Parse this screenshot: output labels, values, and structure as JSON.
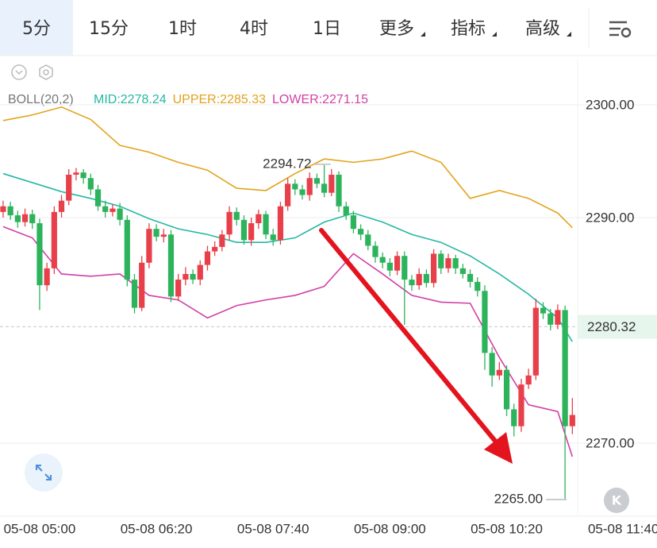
{
  "tabs": [
    "5分",
    "15分",
    "1时",
    "4时",
    "1日",
    "更多",
    "指标",
    "高级"
  ],
  "chart_data": {
    "type": "candlestick",
    "indicator": {
      "name": "BOLL(20,2)",
      "labels": [
        {
          "text": "MID:2278.24",
          "color": "#25b8a4"
        },
        {
          "text": "UPPER:2285.33",
          "color": "#e2a31c"
        },
        {
          "text": "LOWER:2271.15",
          "color": "#d13fa6"
        }
      ]
    },
    "up_color": "#e8404a",
    "down_color": "#2db35c",
    "open": [
      2290.5,
      2291.0,
      2290.2,
      2289.6,
      2290.3,
      2289.5,
      2284.0,
      2285.5,
      2290.5,
      2291.5,
      2293.8,
      2294.0,
      2293.5,
      2292.5,
      2291.0,
      2290.5,
      2290.8,
      2289.8,
      2284.5,
      2282.0,
      2286.0,
      2289.0,
      2288.3,
      2288.5,
      2283.0,
      2284.5,
      2285.0,
      2284.5,
      2285.8,
      2287.0,
      2287.4,
      2288.5,
      2290.5,
      2289.8,
      2288.0,
      2289.5,
      2290.3,
      2288.5,
      2288.0,
      2291.0,
      2293.0,
      2292.5,
      2292.0,
      2293.5,
      2293.0,
      2292.2,
      2293.8,
      2291.0,
      2290.2,
      2289.0,
      2288.5,
      2287.5,
      2286.5,
      2286.0,
      2285.3,
      2286.6,
      2284.5,
      2284.0,
      2285.0,
      2284.2,
      2286.8,
      2285.5,
      2286.4,
      2285.5,
      2285.0,
      2284.3,
      2283.5,
      2278.0,
      2276.0,
      2276.5,
      2273.0,
      2271.5,
      2275.2,
      2276.0,
      2282.0,
      2281.5,
      2280.5,
      2281.8,
      2271.5
    ],
    "high": [
      2291.5,
      2291.4,
      2290.6,
      2290.8,
      2290.7,
      2289.9,
      2286.0,
      2291.0,
      2292.0,
      2294.3,
      2294.4,
      2294.3,
      2293.9,
      2292.9,
      2291.5,
      2291.2,
      2291.3,
      2290.2,
      2285.0,
      2286.6,
      2289.5,
      2289.4,
      2289.0,
      2288.9,
      2285.0,
      2285.6,
      2285.4,
      2286.2,
      2287.5,
      2287.9,
      2288.9,
      2291.0,
      2290.9,
      2290.2,
      2290.0,
      2290.7,
      2290.6,
      2289.0,
      2291.4,
      2293.5,
      2293.4,
      2292.9,
      2294.0,
      2293.9,
      2294.72,
      2294.3,
      2294.1,
      2291.4,
      2290.6,
      2289.4,
      2288.9,
      2287.9,
      2286.9,
      2286.4,
      2287.0,
      2287.0,
      2284.9,
      2285.5,
      2285.4,
      2287.2,
      2287.1,
      2286.8,
      2286.7,
      2285.9,
      2285.4,
      2284.7,
      2284.0,
      2278.5,
      2277.2,
      2276.9,
      2273.5,
      2275.7,
      2276.6,
      2282.8,
      2282.5,
      2281.9,
      2282.3,
      2282.2,
      2274.0
    ],
    "low": [
      2290.0,
      2289.8,
      2289.1,
      2289.2,
      2289.0,
      2281.8,
      2283.5,
      2285.0,
      2290.0,
      2291.1,
      2293.3,
      2293.0,
      2292.0,
      2290.6,
      2290.0,
      2290.1,
      2289.3,
      2283.9,
      2281.5,
      2281.7,
      2285.5,
      2287.9,
      2287.8,
      2282.5,
      2282.6,
      2284.0,
      2284.1,
      2284.0,
      2285.3,
      2286.6,
      2287.0,
      2288.0,
      2289.3,
      2287.6,
      2287.5,
      2289.0,
      2288.1,
      2287.5,
      2287.6,
      2290.6,
      2292.0,
      2291.6,
      2291.5,
      2292.6,
      2291.8,
      2291.9,
      2290.5,
      2289.8,
      2288.6,
      2288.0,
      2287.1,
      2286.0,
      2285.5,
      2284.8,
      2284.9,
      2280.5,
      2283.5,
      2283.6,
      2283.8,
      2283.8,
      2285.0,
      2285.1,
      2285.0,
      2284.6,
      2283.8,
      2283.0,
      2276.5,
      2275.0,
      2275.6,
      2272.4,
      2270.6,
      2271.0,
      2274.8,
      2275.6,
      2281.0,
      2280.0,
      2280.1,
      2265.0,
      2270.8
    ],
    "close": [
      2291.0,
      2290.2,
      2289.6,
      2290.3,
      2289.5,
      2284.0,
      2285.5,
      2290.5,
      2291.5,
      2293.8,
      2294.0,
      2293.5,
      2292.5,
      2291.0,
      2290.5,
      2290.8,
      2289.8,
      2284.5,
      2282.0,
      2286.0,
      2289.0,
      2288.3,
      2288.5,
      2283.0,
      2284.5,
      2285.0,
      2284.5,
      2285.8,
      2287.0,
      2287.4,
      2288.5,
      2290.5,
      2289.8,
      2288.0,
      2289.5,
      2290.3,
      2288.5,
      2288.0,
      2291.0,
      2293.0,
      2292.5,
      2292.0,
      2293.5,
      2293.0,
      2292.2,
      2293.8,
      2291.0,
      2290.2,
      2289.0,
      2288.5,
      2287.5,
      2286.5,
      2286.0,
      2285.3,
      2286.6,
      2284.5,
      2284.0,
      2285.0,
      2284.2,
      2286.8,
      2285.5,
      2286.4,
      2285.5,
      2285.0,
      2284.3,
      2283.5,
      2278.0,
      2276.0,
      2276.5,
      2273.0,
      2271.5,
      2275.2,
      2276.0,
      2282.0,
      2281.5,
      2280.5,
      2281.8,
      2271.5,
      2272.5
    ],
    "bands": {
      "x": [
        0,
        4,
        8,
        12,
        16,
        20,
        24,
        28,
        32,
        36,
        40,
        44,
        48,
        52,
        56,
        60,
        64,
        68,
        72,
        76,
        78
      ],
      "series": [
        {
          "name": "UPPER",
          "color": "#e2a31c",
          "values": [
            2298.6,
            2299.1,
            2299.8,
            2298.7,
            2296.4,
            2295.8,
            2294.9,
            2294.2,
            2292.6,
            2292.4,
            2293.9,
            2295.2,
            2294.9,
            2295.2,
            2295.9,
            2294.9,
            2291.7,
            2292.4,
            2291.7,
            2290.4,
            2289.1
          ]
        },
        {
          "name": "MID",
          "color": "#25b8a4",
          "values": [
            2293.9,
            2293.1,
            2292.3,
            2291.7,
            2291.0,
            2289.9,
            2289.0,
            2288.5,
            2287.8,
            2287.8,
            2288.2,
            2289.6,
            2290.4,
            2289.6,
            2288.5,
            2287.8,
            2286.6,
            2285.0,
            2283.2,
            2281.1,
            2279.0
          ]
        },
        {
          "name": "LOWER",
          "color": "#d13fa6",
          "values": [
            2289.2,
            2288.2,
            2285.0,
            2284.8,
            2285.0,
            2283.1,
            2282.7,
            2281.1,
            2282.2,
            2282.7,
            2283.1,
            2283.9,
            2286.8,
            2285.0,
            2283.1,
            2282.5,
            2282.4,
            2277.6,
            2273.4,
            2272.8,
            2268.8
          ]
        }
      ]
    },
    "xlim": [
      -0.43,
      89.6
    ],
    "xticks": [
      {
        "value": 5,
        "label": "05-08 05:00"
      },
      {
        "value": 21,
        "label": "05-08 06:20"
      },
      {
        "value": 37,
        "label": "05-08 07:40"
      },
      {
        "value": 53,
        "label": "05-08 09:00"
      },
      {
        "value": 69,
        "label": "05-08 10:20"
      },
      {
        "value": 85,
        "label": "05-08 11:40"
      }
    ],
    "ylim": [
      2263.52,
      2304.01
    ],
    "yticks": [
      {
        "value": 2270,
        "label": "2270.00"
      },
      {
        "value": 2290,
        "label": "2290.00"
      },
      {
        "value": 2300,
        "label": "2300.00"
      }
    ],
    "grid": true,
    "current_price": 2280.32,
    "max_marker": 2294.72,
    "min_marker": {
      "value": 2265,
      "label": "2265.00"
    },
    "k_button": "K"
  }
}
